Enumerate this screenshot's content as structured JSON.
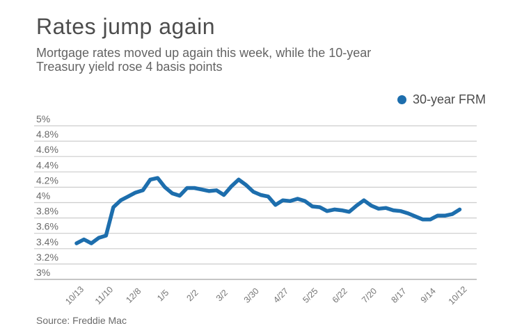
{
  "header": {
    "title": "Rates jump again",
    "subtitle_lines": [
      "Mortgage rates moved up again this week, while the 10-year",
      "Treasury yield rose 4 basis points"
    ]
  },
  "legend": {
    "label": "30-year FRM",
    "marker_color": "#1d6ead"
  },
  "source": "Source: Freddie Mac",
  "colors": {
    "line": "#1d6ead",
    "grid": "#cccccc",
    "axis_bottom": "#c6c6c6",
    "y_tick_text": "#696969",
    "x_tick_text": "#757575"
  },
  "chart_data": {
    "type": "line",
    "title": "Rates jump again",
    "xlabel": "",
    "ylabel": "",
    "ylim": [
      3,
      5
    ],
    "grid": "horizontal",
    "legend_position": "top-right",
    "y_tick_labels": [
      "5%",
      "4.8%",
      "4.6%",
      "4.4%",
      "4.2%",
      "4%",
      "3.8%",
      "3.6%",
      "3.4%",
      "3.2%",
      "3%"
    ],
    "x_tick_labels": [
      "10/13",
      "11/10",
      "12/8",
      "1/5",
      "2/2",
      "3/2",
      "3/30",
      "4/27",
      "5/25",
      "6/22",
      "7/20",
      "8/17",
      "9/14",
      "10/12"
    ],
    "series": [
      {
        "name": "30-year FRM",
        "x": [
          "10/13",
          "10/20",
          "10/27",
          "11/3",
          "11/10",
          "11/17",
          "11/23",
          "12/1",
          "12/8",
          "12/15",
          "12/22",
          "12/29",
          "1/5",
          "1/12",
          "1/19",
          "1/26",
          "2/2",
          "2/9",
          "2/16",
          "2/23",
          "3/2",
          "3/9",
          "3/16",
          "3/23",
          "3/30",
          "4/6",
          "4/13",
          "4/20",
          "4/27",
          "5/4",
          "5/11",
          "5/18",
          "5/25",
          "6/1",
          "6/8",
          "6/15",
          "6/22",
          "6/29",
          "7/6",
          "7/13",
          "7/20",
          "7/27",
          "8/3",
          "8/10",
          "8/17",
          "8/24",
          "8/31",
          "9/7",
          "9/14",
          "9/21",
          "9/28",
          "10/5",
          "10/12"
        ],
        "values": [
          3.47,
          3.52,
          3.47,
          3.54,
          3.57,
          3.94,
          4.03,
          4.08,
          4.13,
          4.16,
          4.3,
          4.32,
          4.2,
          4.12,
          4.09,
          4.19,
          4.19,
          4.17,
          4.15,
          4.16,
          4.1,
          4.21,
          4.3,
          4.23,
          4.14,
          4.1,
          4.08,
          3.97,
          4.03,
          4.02,
          4.05,
          4.02,
          3.95,
          3.94,
          3.89,
          3.91,
          3.9,
          3.88,
          3.96,
          4.03,
          3.96,
          3.92,
          3.93,
          3.9,
          3.89,
          3.86,
          3.82,
          3.78,
          3.78,
          3.83,
          3.83,
          3.85,
          3.91
        ]
      }
    ]
  }
}
